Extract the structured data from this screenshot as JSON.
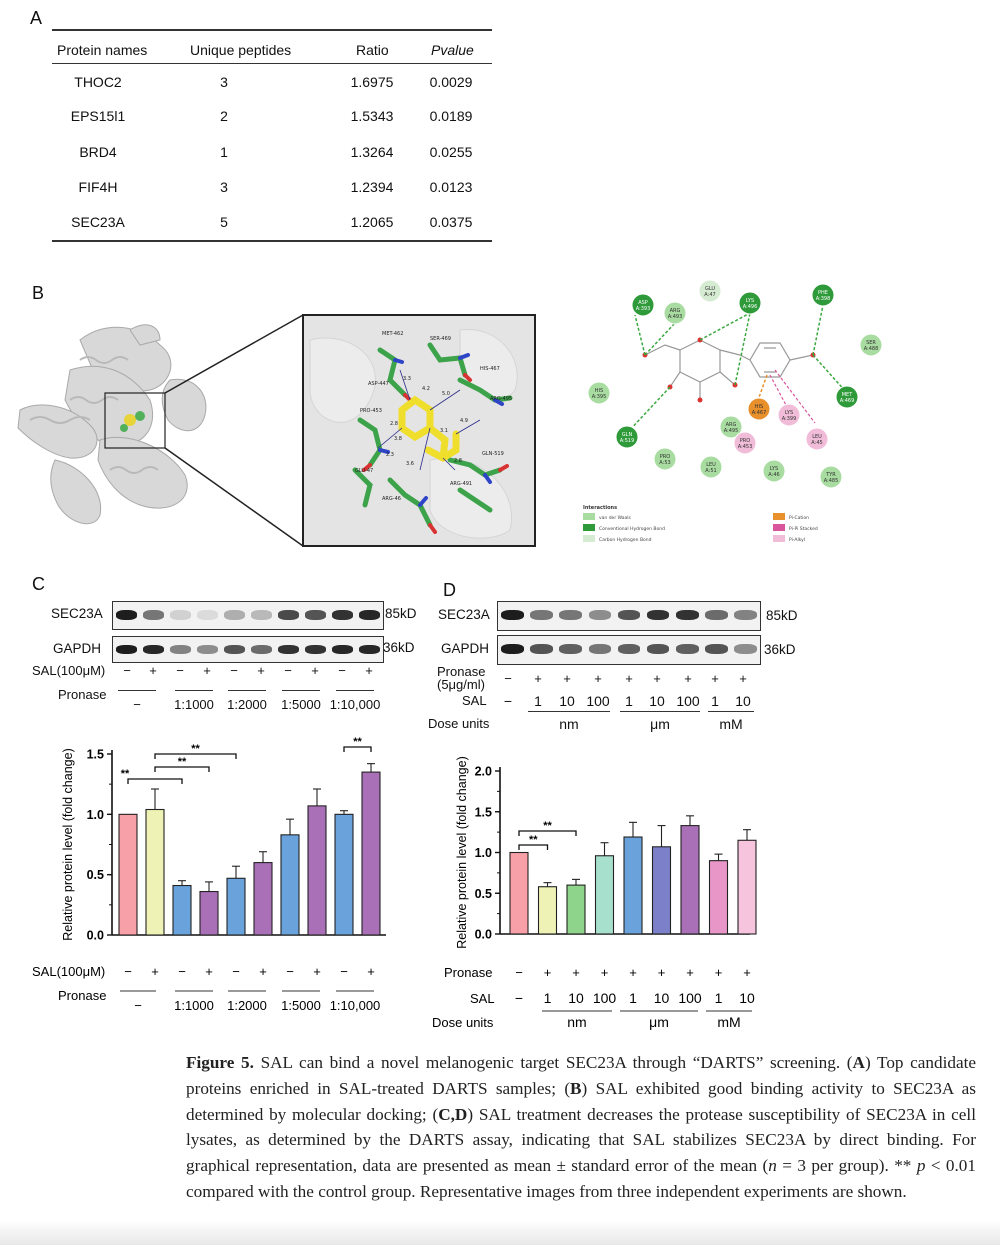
{
  "panels": {
    "a": "A",
    "b": "B",
    "c": "C",
    "d": "D"
  },
  "table": {
    "headers": [
      "Protein names",
      "Unique peptides",
      "Ratio",
      "Pvalue"
    ],
    "rows": [
      [
        "THOC2",
        "3",
        "1.6975",
        "0.0029"
      ],
      [
        "EPS15l1",
        "2",
        "1.5343",
        "0.0189"
      ],
      [
        "BRD4",
        "1",
        "1.3264",
        "0.0255"
      ],
      [
        "FIF4H",
        "3",
        "1.2394",
        "0.0123"
      ],
      [
        "SEC23A",
        "5",
        "1.2065",
        "0.0375"
      ]
    ]
  },
  "docking": {
    "residues": [
      "MET-462",
      "SER-469",
      "HIS-467",
      "ARG-495",
      "ASP-447",
      "PRO-453",
      "GLU-47",
      "ARG-46",
      "ARG-491",
      "GLN-519"
    ],
    "distances": [
      "3.3",
      "5.0",
      "2.8",
      "4.2",
      "4.9",
      "3.8",
      "2.3",
      "3.6",
      "2.8",
      "3.1"
    ],
    "diagram_residues": [
      "GLU A:47",
      "ASP A:393",
      "ARG A:493",
      "LYS A:496",
      "PHE A:398",
      "SER A:488",
      "HIS A:395",
      "HIS A:467",
      "LYS A:399",
      "MET A:469",
      "GLN A:519",
      "ARG A:495",
      "PRO A:453",
      "LEU A:45",
      "PRO A:53",
      "LEU A:51",
      "LYS A:46",
      "TYR A:485"
    ],
    "legend_title": "Interactions",
    "legend_items": [
      {
        "label": "van der Waals",
        "color": "#a8dca0"
      },
      {
        "label": "Conventional Hydrogen Bond",
        "color": "#2e9a3a"
      },
      {
        "label": "Carbon Hydrogen Bond",
        "color": "#d6ecd2"
      },
      {
        "label": "Pi-Cation",
        "color": "#e8902c"
      },
      {
        "label": "Pi-Pi Stacked",
        "color": "#d9569c"
      },
      {
        "label": "Pi-Alkyl",
        "color": "#f0bcd8"
      }
    ]
  },
  "blot_c": {
    "row1_label": "SEC23A",
    "row1_kd": "85kD",
    "row2_label": "GAPDH",
    "row2_kd": "36kD",
    "sal_label": "SAL(100μM)",
    "sal_signs": [
      "−",
      "+",
      "−",
      "+",
      "−",
      "+",
      "−",
      "+",
      "−",
      "+"
    ],
    "pronase_label": "Pronase",
    "pronase_groups": [
      "−",
      "1:1000",
      "1:2000",
      "1:5000",
      "1:10,000"
    ]
  },
  "blot_d": {
    "row1_label": "SEC23A",
    "row1_kd": "85kD",
    "row2_label": "GAPDH",
    "row2_kd": "36kD",
    "pronase_label": "Pronase",
    "pronase_sub": "(5μg/ml)",
    "pronase_signs": [
      "−",
      "+",
      "+",
      "+",
      "+",
      "+",
      "+",
      "+",
      "+"
    ],
    "sal_label": "SAL",
    "sal_values": [
      "−",
      "1",
      "10",
      "100",
      "1",
      "10",
      "100",
      "1",
      "10"
    ],
    "dose_label": "Dose units",
    "dose_units": [
      "nm",
      "μm",
      "mM"
    ]
  },
  "chart_data": [
    {
      "type": "bar",
      "panel": "C",
      "ylabel": "Relative protein level (fold change)",
      "ylim": [
        0,
        1.5
      ],
      "yticks": [
        "0.0",
        "0.5",
        "1.0",
        "1.5"
      ],
      "values": [
        1.0,
        1.04,
        0.41,
        0.36,
        0.47,
        0.6,
        0.83,
        1.07,
        1.0,
        1.35
      ],
      "errors": [
        0.0,
        0.17,
        0.04,
        0.08,
        0.1,
        0.09,
        0.13,
        0.14,
        0.03,
        0.07
      ],
      "colors": [
        "#f7a0a8",
        "#eef2b4",
        "#6aa3dc",
        "#a970b8",
        "#6aa3dc",
        "#a970b8",
        "#6aa3dc",
        "#a970b8",
        "#6aa3dc",
        "#a970b8"
      ],
      "x_sal_label": "SAL(100μM)",
      "x_sal_signs": [
        "−",
        "+",
        "−",
        "+",
        "−",
        "+",
        "−",
        "+",
        "−",
        "+"
      ],
      "x_pronase_label": "Pronase",
      "x_pronase_groups": [
        "−",
        "1:1000",
        "1:2000",
        "1:5000",
        "1:10,000"
      ],
      "significance": [
        "**",
        "**",
        "**",
        "**"
      ]
    },
    {
      "type": "bar",
      "panel": "D",
      "ylabel": "Relative protein level (fold change)",
      "ylim": [
        0,
        2.0
      ],
      "yticks": [
        "0.0",
        "0.5",
        "1.0",
        "1.5",
        "2.0"
      ],
      "values": [
        1.0,
        0.58,
        0.6,
        0.96,
        1.19,
        1.07,
        1.33,
        0.9,
        1.15
      ],
      "errors": [
        0.0,
        0.05,
        0.07,
        0.16,
        0.18,
        0.26,
        0.12,
        0.08,
        0.13
      ],
      "colors": [
        "#f7a0a8",
        "#eef2b4",
        "#8ed48a",
        "#a7e0cc",
        "#6aa3dc",
        "#7b80c8",
        "#a970b8",
        "#e896c8",
        "#f6c4dc"
      ],
      "x_pronase_label": "Pronase",
      "x_pronase_signs": [
        "−",
        "+",
        "+",
        "+",
        "+",
        "+",
        "+",
        "+",
        "+"
      ],
      "x_sal_label": "SAL",
      "x_sal_values": [
        "−",
        "1",
        "10",
        "100",
        "1",
        "10",
        "100",
        "1",
        "10"
      ],
      "x_dose_label": "Dose units",
      "x_dose_units": [
        "nm",
        "μm",
        "mM"
      ],
      "significance": [
        "**",
        "**"
      ]
    }
  ],
  "caption": {
    "fig_label": "Figure 5.",
    "t1": " SAL can bind a novel melanogenic target SEC23A through “DARTS” screening. (",
    "a": "A",
    "t2": ") Top candidate proteins enriched in SAL-treated DARTS samples; (",
    "b": "B",
    "t3": ") SAL exhibited good binding activity to SEC23A as determined by molecular docking; (",
    "cd": "C,D",
    "t4": ") SAL treatment decreases the protease susceptibility of SEC23A in cell lysates, as determined by the DARTS assay, indicating that SAL stabilizes SEC23A by direct binding. For graphical representation, data are presented as mean ± standard error of the mean (",
    "n": "n",
    "t5": " = 3 per group). ** ",
    "p": "p",
    "t6": " < 0.01 compared with the control group. Representative images from three independent experiments are shown."
  }
}
